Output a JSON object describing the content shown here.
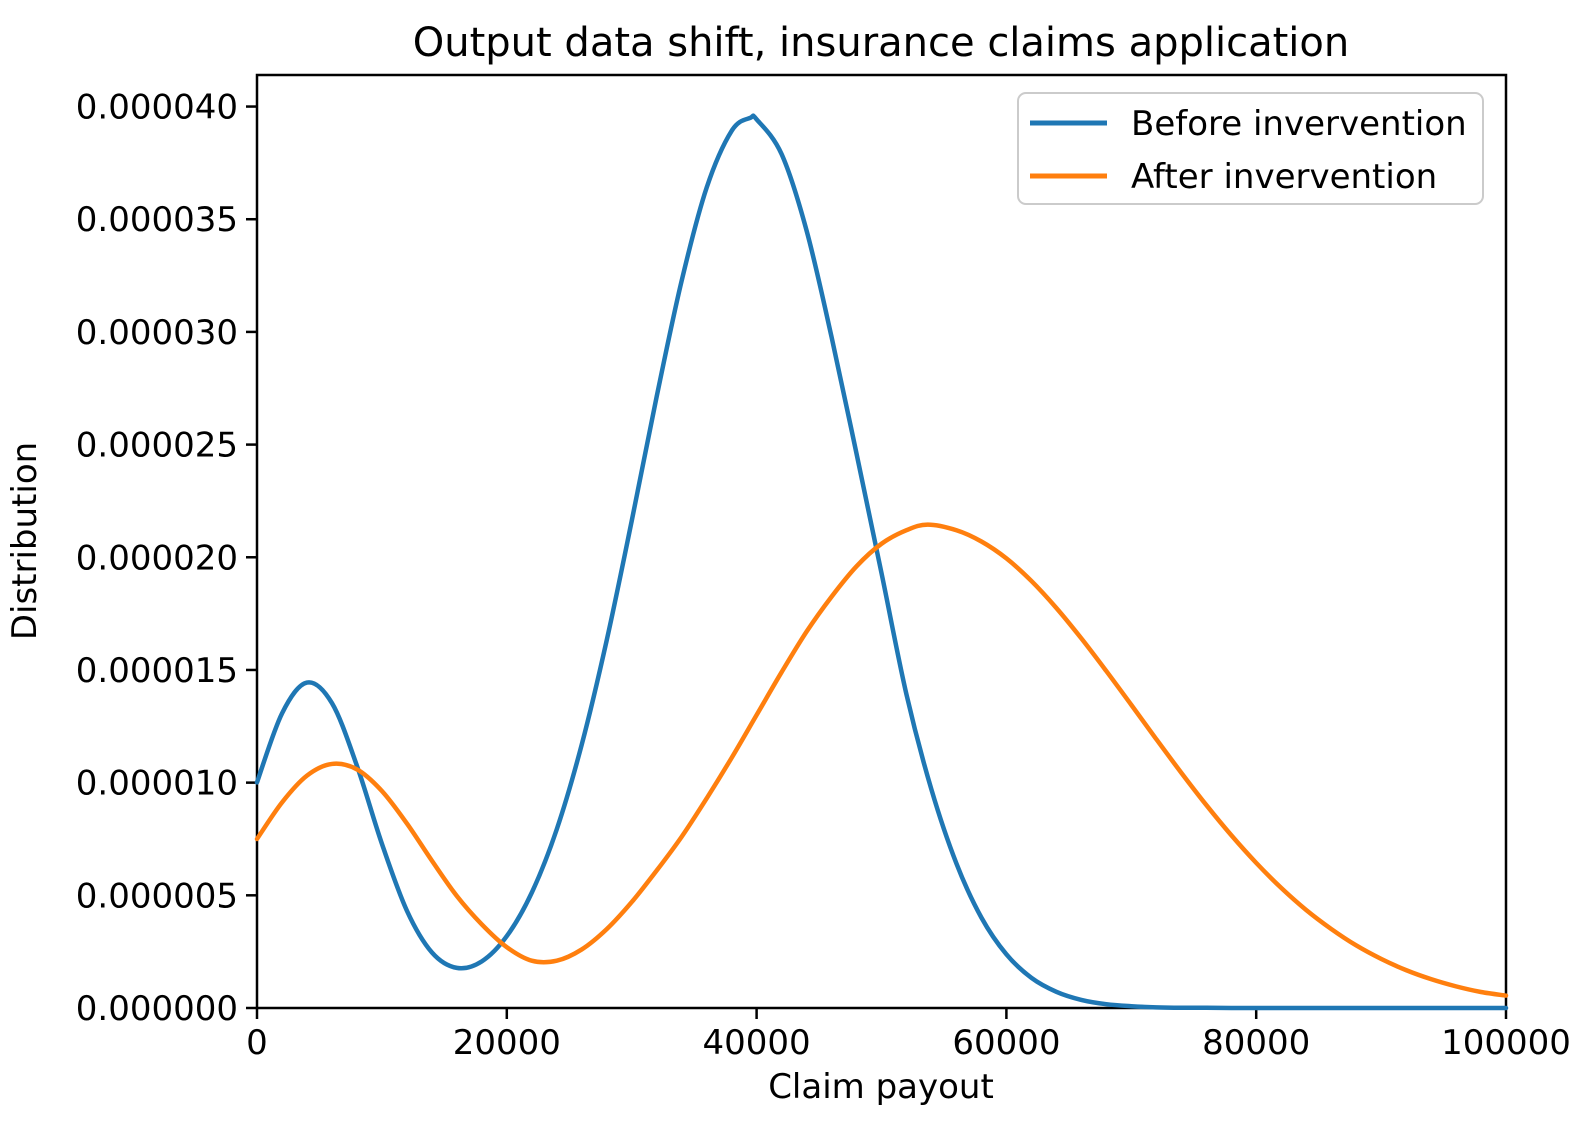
{
  "chart_data": {
    "type": "line",
    "title": "Output data shift, insurance claims application",
    "xlabel": "Claim payout",
    "ylabel": "Distribution",
    "xlim": [
      0,
      100000
    ],
    "ylim": [
      0,
      4.14e-05
    ],
    "grid": false,
    "legend_position": "upper right",
    "x_ticks": {
      "values": [
        0,
        20000,
        40000,
        60000,
        80000,
        100000
      ],
      "labels": [
        "0",
        "20000",
        "40000",
        "60000",
        "80000",
        "100000"
      ]
    },
    "y_ticks": {
      "values": [
        0,
        5e-06,
        1e-05,
        1.5e-05,
        2e-05,
        2.5e-05,
        3e-05,
        3.5e-05,
        4e-05
      ],
      "labels": [
        "0.000000",
        "0.000005",
        "0.000010",
        "0.000015",
        "0.000020",
        "0.000025",
        "0.000030",
        "0.000035",
        "0.000040"
      ]
    },
    "series": [
      {
        "name": "Before invervention",
        "color": "#1f77b4",
        "x": [
          0,
          2000,
          4000,
          6000,
          8000,
          10000,
          12000,
          14000,
          16000,
          18000,
          20000,
          22000,
          24000,
          26000,
          28000,
          30000,
          32000,
          34000,
          36000,
          38000,
          39500,
          40000,
          42000,
          44000,
          46000,
          48000,
          50000,
          52000,
          54000,
          56000,
          58000,
          60000,
          62000,
          64000,
          66000,
          68000,
          70000,
          72000,
          74000,
          76000,
          78000,
          80000,
          84000,
          88000,
          92000,
          96000,
          100000
        ],
        "y": [
          1.001e-05,
          1.307e-05,
          1.444e-05,
          1.353e-05,
          1.075e-05,
          7.29e-06,
          4.32e-06,
          2.47e-06,
          1.78e-06,
          2.07e-06,
          3.19e-06,
          5.12e-06,
          7.93e-06,
          1.169e-05,
          1.632e-05,
          2.161e-05,
          2.713e-05,
          3.227e-05,
          3.64e-05,
          3.892e-05,
          3.95e-05,
          3.943e-05,
          3.789e-05,
          3.45e-05,
          2.978e-05,
          2.46e-05,
          1.93e-05,
          1.391e-05,
          9.69e-06,
          6.41e-06,
          4.01e-06,
          2.38e-06,
          1.34e-06,
          7.2e-07,
          3.6e-07,
          1.7e-07,
          8e-08,
          3e-08,
          1e-08,
          1e-08,
          0,
          0,
          0,
          0,
          0,
          0,
          0
        ]
      },
      {
        "name": "After invervention",
        "color": "#ff7f0e",
        "x": [
          0,
          2000,
          4000,
          6000,
          8000,
          10000,
          12000,
          14000,
          16000,
          18000,
          20000,
          22000,
          24000,
          26000,
          28000,
          30000,
          32000,
          34000,
          36000,
          38000,
          40000,
          42000,
          44000,
          46000,
          48000,
          50000,
          52000,
          53700,
          56000,
          58000,
          60000,
          62000,
          64000,
          66000,
          68000,
          70000,
          72000,
          74000,
          76000,
          78000,
          80000,
          82000,
          84000,
          86000,
          88000,
          90000,
          92000,
          94000,
          96000,
          98000,
          100000
        ],
        "y": [
          7.5e-06,
          9.12e-06,
          1.031e-05,
          1.083e-05,
          1.059e-05,
          9.63e-06,
          8.19e-06,
          6.54e-06,
          4.97e-06,
          3.71e-06,
          2.7e-06,
          2.1e-06,
          2.1e-06,
          2.6e-06,
          3.5e-06,
          4.7e-06,
          6.1e-06,
          7.6e-06,
          9.3e-06,
          1.11e-05,
          1.3e-05,
          1.49e-05,
          1.67e-05,
          1.825e-05,
          1.96e-05,
          2.06e-05,
          2.12e-05,
          2.145e-05,
          2.12e-05,
          2.07e-05,
          1.995e-05,
          1.895e-05,
          1.775e-05,
          1.64e-05,
          1.495e-05,
          1.345e-05,
          1.193e-05,
          1.044e-05,
          9.01e-06,
          7.67e-06,
          6.44e-06,
          5.33e-06,
          4.35e-06,
          3.51e-06,
          2.78e-06,
          2.18e-06,
          1.68e-06,
          1.28e-06,
          9.6e-07,
          7.1e-07,
          5.5e-07
        ]
      }
    ]
  },
  "legend": {
    "border_color": "#cbcbcb",
    "background": "#ffffff"
  },
  "axes": {
    "spine_color": "#000000"
  }
}
